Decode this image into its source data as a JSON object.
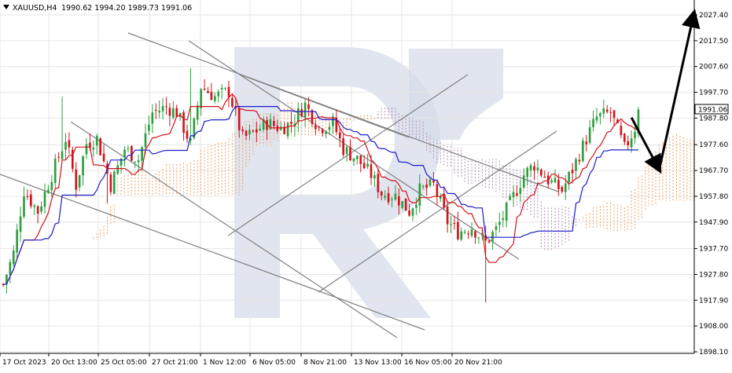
{
  "header": {
    "symbol": "XAUUSD,H4",
    "ohlc": "1990.62 1994.20 1989.73 1991.06",
    "icon": "triangle-down-icon"
  },
  "price_badge": "1991.06",
  "colors": {
    "bull": "#2e9e3e",
    "bear": "#d3131c",
    "tenkan": "#d3131c",
    "kijun": "#1c1ccc",
    "kumo": "#f0a060",
    "kumo_alt": "#b48ab4",
    "trendline": "#808080",
    "grid": "#e6e6e6",
    "axis_text": "#000000",
    "badge_bg": "#ffffff",
    "watermark": "#d6dcea"
  },
  "chart_data": {
    "type": "candlestick",
    "title": "XAUUSD,H4",
    "ylim": [
      1898.1,
      2033.0
    ],
    "y_ticks": [
      "2027.40",
      "2017.50",
      "2007.60",
      "1997.70",
      "1987.80",
      "1977.60",
      "1967.70",
      "1957.80",
      "1947.90",
      "1937.70",
      "1927.80",
      "1917.90",
      "1908.00",
      "1898.10"
    ],
    "x_ticks": [
      "17 Oct 2023",
      "20 Oct 13:00",
      "25 Oct 05:00",
      "27 Oct 21:00",
      "1 Nov 12:00",
      "6 Nov 05:00",
      "8 Nov 21:00",
      "13 Nov 13:00",
      "16 Nov 05:00",
      "20 Nov 21:00"
    ],
    "last_price": 1991.06,
    "anchors": [
      [
        0,
        1924
      ],
      [
        3,
        1936
      ],
      [
        6,
        1960
      ],
      [
        10,
        1952
      ],
      [
        14,
        1966
      ],
      [
        18,
        1980
      ],
      [
        21,
        1962
      ],
      [
        24,
        1978
      ],
      [
        27,
        1980
      ],
      [
        31,
        1962
      ],
      [
        35,
        1976
      ],
      [
        39,
        1972
      ],
      [
        43,
        1990
      ],
      [
        47,
        1992
      ],
      [
        50,
        1990
      ],
      [
        54,
        1978
      ],
      [
        57,
        2000
      ],
      [
        61,
        1996
      ],
      [
        65,
        1998
      ],
      [
        69,
        1980
      ],
      [
        72,
        1982
      ],
      [
        76,
        1986
      ],
      [
        80,
        1984
      ],
      [
        83,
        1986
      ],
      [
        87,
        1993
      ],
      [
        91,
        1984
      ],
      [
        95,
        1986
      ],
      [
        98,
        1976
      ],
      [
        102,
        1972
      ],
      [
        106,
        1966
      ],
      [
        109,
        1959
      ],
      [
        113,
        1958
      ],
      [
        117,
        1952
      ],
      [
        120,
        1960
      ],
      [
        124,
        1962
      ],
      [
        128,
        1948
      ],
      [
        131,
        1944
      ],
      [
        135,
        1946
      ],
      [
        139,
        1940
      ],
      [
        142,
        1945
      ],
      [
        146,
        1955
      ],
      [
        150,
        1966
      ],
      [
        153,
        1970
      ],
      [
        157,
        1964
      ],
      [
        161,
        1960
      ],
      [
        164,
        1968
      ],
      [
        168,
        1980
      ],
      [
        171,
        1988
      ],
      [
        175,
        1990
      ],
      [
        179,
        1976
      ],
      [
        182,
        1984
      ],
      [
        183,
        1991.06
      ]
    ],
    "annotation_arrows": [
      {
        "name": "forecast-down-arrow",
        "from": [
          181,
          1988
        ],
        "to": [
          189,
          1968
        ]
      },
      {
        "name": "forecast-up-arrow",
        "from": [
          189,
          1968
        ],
        "to": [
          199,
          2028
        ]
      }
    ]
  }
}
